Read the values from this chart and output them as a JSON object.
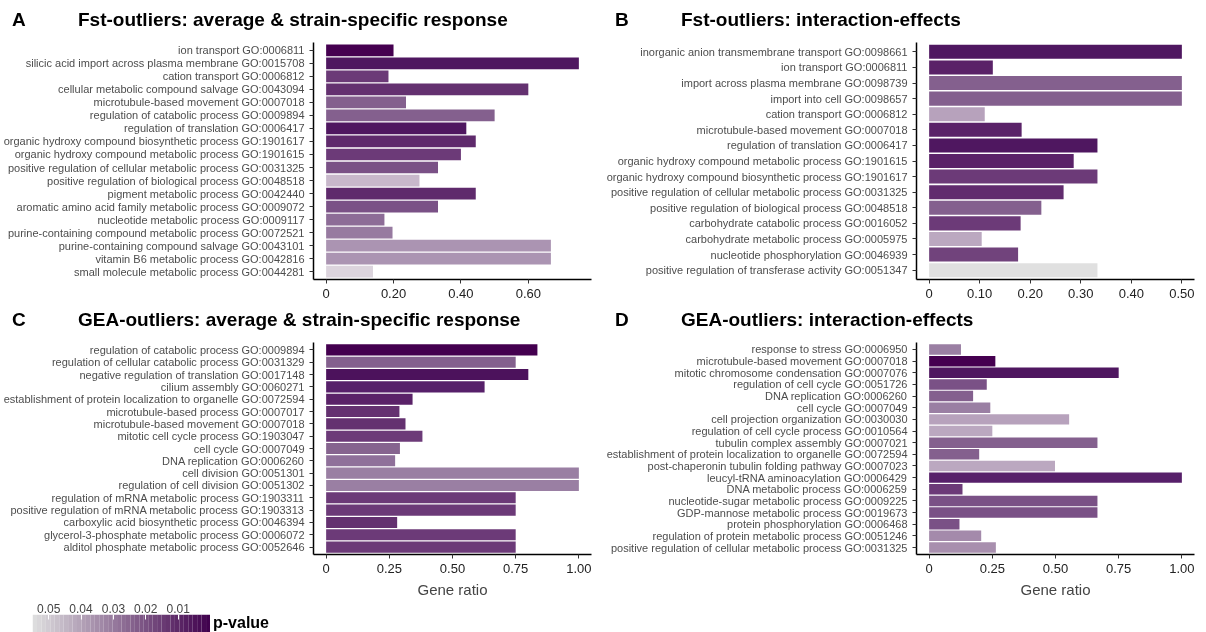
{
  "chart_data": [
    {
      "type": "bar",
      "orientation": "horizontal",
      "title": "Fst-outliers: average & strain-specific response",
      "annotations": [
        "A"
      ],
      "categories": [
        "ion transport GO:0006811",
        "silicic acid import across plasma membrane GO:0015708",
        "cation transport GO:0006812",
        "cellular metabolic compound salvage GO:0043094",
        "microtubule-based movement GO:0007018",
        "regulation of catabolic process GO:0009894",
        "regulation of translation GO:0006417",
        "organic hydroxy compound biosynthetic process GO:1901617",
        "organic hydroxy compound metabolic process GO:1901615",
        "positive regulation of cellular metabolic process GO:0031325",
        "positive regulation of biological process GO:0048518",
        "pigment metabolic process GO:0042440",
        "aromatic amino acid family metabolic process GO:0009072",
        "nucleotide metabolic process GO:0009117",
        "purine-containing compound metabolic process GO:0072521",
        "purine-containing compound salvage GO:0043101",
        "vitamin B6 metabolic process GO:0042816",
        "small molecule metabolic process GO:0044281"
      ],
      "values": [
        0.2,
        0.75,
        0.185,
        0.6,
        0.237,
        0.5,
        0.416,
        0.444,
        0.4,
        0.332,
        0.277,
        0.444,
        0.332,
        0.173,
        0.197,
        0.667,
        0.667,
        0.139
      ],
      "colors": [
        "#450050",
        "#4f1760",
        "#6b3a77",
        "#643170",
        "#84608e",
        "#84608e",
        "#4f1760",
        "#5f2a6c",
        "#6c3a78",
        "#7a5186",
        "#c8b8cb",
        "#5f2a6c",
        "#7a5186",
        "#8d6c97",
        "#977aa0",
        "#ab94b2",
        "#ab94b2",
        "#dcd4dd"
      ],
      "xlim": [
        -0.0375,
        0.7875
      ],
      "xticks": [
        0,
        {
          "value": 0.2,
          "label": "0.20"
        },
        {
          "value": 0.4,
          "label": "0.40"
        },
        {
          "value": 0.6,
          "label": "0.60"
        }
      ]
    },
    {
      "type": "bar",
      "orientation": "horizontal",
      "title": "Fst-outliers: interaction-effects",
      "annotations": [
        "B"
      ],
      "categories": [
        "inorganic anion transmembrane transport GO:0098661",
        "ion transport GO:0006811",
        "import across plasma membrane GO:0098739",
        "import into cell GO:0098657",
        "cation transport GO:0006812",
        "microtubule-based movement GO:0007018",
        "regulation of translation GO:0006417",
        "organic hydroxy compound metabolic process GO:1901615",
        "organic hydroxy compound biosynthetic process GO:1901617",
        "positive regulation of cellular metabolic process GO:0031325",
        "positive regulation of biological process GO:0048518",
        "carbohydrate catabolic process GO:0016052",
        "carbohydrate metabolic process GO:0005975",
        "nucleotide phosphorylation GO:0046939",
        "positive regulation of transferase activity GO:0051347"
      ],
      "values": [
        0.5,
        0.126,
        0.5,
        0.5,
        0.11,
        0.183,
        0.333,
        0.286,
        0.333,
        0.266,
        0.222,
        0.181,
        0.104,
        0.176,
        0.333
      ],
      "colors": [
        "#4f1760",
        "#5a2268",
        "#84608e",
        "#84608e",
        "#b7a2bc",
        "#5a2268",
        "#4f1760",
        "#5a2268",
        "#6c3a78",
        "#612b6e",
        "#84608e",
        "#6c3a78",
        "#bba8c0",
        "#71437c",
        "#e0e0e0"
      ],
      "xlim": [
        -0.025,
        0.525
      ],
      "xticks": [
        0,
        {
          "value": 0.1,
          "label": "0.10"
        },
        {
          "value": 0.2,
          "label": "0.20"
        },
        {
          "value": 0.3,
          "label": "0.30"
        },
        {
          "value": 0.4,
          "label": "0.40"
        },
        {
          "value": 0.5,
          "label": "0.50"
        }
      ]
    },
    {
      "type": "bar",
      "orientation": "horizontal",
      "title": "GEA-outliers: average & strain-specific response",
      "annotations": [
        "C"
      ],
      "xlabel": "Gene ratio",
      "clabel": "p-value",
      "clim": [
        0.055,
        0.0
      ],
      "cticks": [
        0.05,
        0.04,
        0.03,
        0.02,
        0.01
      ],
      "categories": [
        "regulation of catabolic process GO:0009894",
        "regulation of cellular catabolic process GO:0031329",
        "negative regulation of translation GO:0017148",
        "cilium assembly GO:0060271",
        "establishment of protein localization to organelle GO:0072594",
        "microtubule-based process GO:0007017",
        "microtubule-based movement GO:0007018",
        "mitotic cell cycle process GO:1903047",
        "cell cycle GO:0007049",
        "DNA replication GO:0006260",
        "cell division GO:0051301",
        "regulation of cell division GO:0051302",
        "regulation of mRNA metabolic process GO:1903311",
        "positive regulation of mRNA metabolic process GO:1903313",
        "carboxylic acid biosynthetic process GO:0046394",
        "glycerol-3-phosphate metabolic process GO:0006072",
        "alditol phosphate metabolic process GO:0052646"
      ],
      "values": [
        0.836,
        0.75,
        0.8,
        0.627,
        0.342,
        0.29,
        0.314,
        0.381,
        0.292,
        0.273,
        1.0,
        1.0,
        0.75,
        0.75,
        0.281,
        0.75,
        0.75
      ],
      "colors": [
        "#44004f",
        "#84608e",
        "#4c125c",
        "#57206a",
        "#5a2268",
        "#643170",
        "#643170",
        "#6c3a78",
        "#86648f",
        "#8f709a",
        "#9a7fa3",
        "#9a7fa3",
        "#6c3a78",
        "#6c3a78",
        "#643170",
        "#6c3a78",
        "#6c3a78"
      ],
      "xlim": [
        -0.05,
        1.05
      ],
      "xticks": [
        0,
        0.25,
        {
          "value": 0.5,
          "label": "0.50"
        },
        0.75,
        {
          "value": 1.0,
          "label": "1.00"
        }
      ]
    },
    {
      "type": "bar",
      "orientation": "horizontal",
      "title": "GEA-outliers: interaction-effects",
      "annotations": [
        "D"
      ],
      "xlabel": "Gene ratio",
      "categories": [
        "response to stress GO:0006950",
        "microtubule-based movement GO:0007018",
        "mitotic chromosome condensation GO:0007076",
        "regulation of cell cycle GO:0051726",
        "DNA replication GO:0006260",
        "cell cycle GO:0007049",
        "cell projection organization GO:0030030",
        "regulation of cell cycle process GO:0010564",
        "tubulin complex assembly GO:0007021",
        "establishment of protein localization to organelle GO:0072594",
        "post-chaperonin tubulin folding pathway GO:0007023",
        "leucyl-tRNA aminoacylation GO:0006429",
        "DNA metabolic process GO:0006259",
        "nucleotide-sugar metabolic process GO:0009225",
        "GDP-mannose metabolic process GO:0019673",
        "protein phosphorylation GO:0006468",
        "regulation of protein metabolic process GO:0051246",
        "positive regulation of cellular metabolic process GO:0031325"
      ],
      "values": [
        0.126,
        0.262,
        0.75,
        0.228,
        0.174,
        0.242,
        0.554,
        0.25,
        0.666,
        0.198,
        0.498,
        1.0,
        0.132,
        0.666,
        0.666,
        0.12,
        0.206,
        0.264
      ],
      "colors": [
        "#9a7fa3",
        "#450050",
        "#4f1760",
        "#7a5186",
        "#84608e",
        "#9a7fa3",
        "#b7a2bc",
        "#bba8c0",
        "#84608e",
        "#84608e",
        "#bba8c0",
        "#57206a",
        "#6c3a78",
        "#7a5186",
        "#7a5186",
        "#7a5186",
        "#a48aab",
        "#a88fae"
      ],
      "xlim": [
        -0.05,
        1.05
      ],
      "xticks": [
        0,
        0.25,
        {
          "value": 0.5,
          "label": "0.50"
        },
        0.75,
        {
          "value": 1.0,
          "label": "1.00"
        }
      ]
    }
  ]
}
